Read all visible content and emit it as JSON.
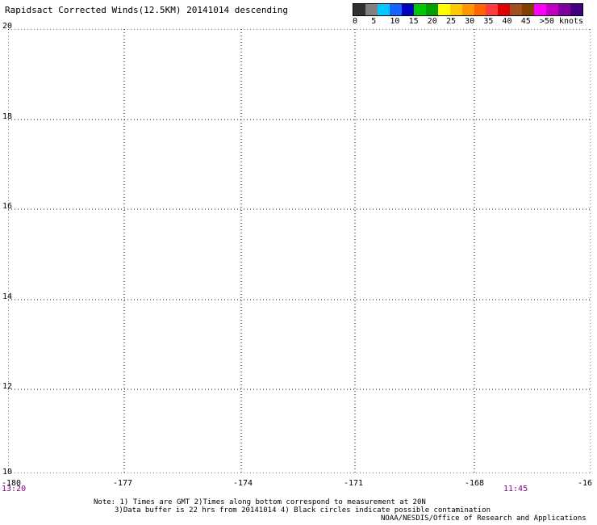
{
  "title": "Rapidsact Corrected Winds(12.5KM) 20141014 descending",
  "scale": {
    "labels": [
      "0",
      "5",
      "10",
      "15",
      "20",
      "25",
      "30",
      "35",
      "40",
      "45",
      ">50 knots"
    ],
    "colors": [
      "#303030",
      "#808080",
      "#00c8ff",
      "#1464ff",
      "#0000c0",
      "#00c800",
      "#00a000",
      "#ffff00",
      "#ffc800",
      "#ff9600",
      "#ff6400",
      "#ff3c3c",
      "#e00000",
      "#a05020",
      "#804000",
      "#ff00ff",
      "#c000c0",
      "#8000a0",
      "#400080"
    ]
  },
  "map": {
    "lat_labels": [
      "20",
      "18",
      "16",
      "14",
      "12",
      "10"
    ],
    "lon_labels": [
      "-180",
      "-177",
      "-174",
      "-171",
      "-168",
      "-16"
    ],
    "time_labels": [
      "13:20",
      "11:45"
    ],
    "colors": {
      "grid": "#000000",
      "time_label": "#800080"
    }
  },
  "notes": [
    "Note: 1) Times are GMT 2)Times along bottom correspond to measurement at 20N",
    "3)Data buffer is 22 hrs from 20141014 4) Black circles indicate possible contamination",
    "NOAA/NESDIS/Office of Research and Applications"
  ]
}
